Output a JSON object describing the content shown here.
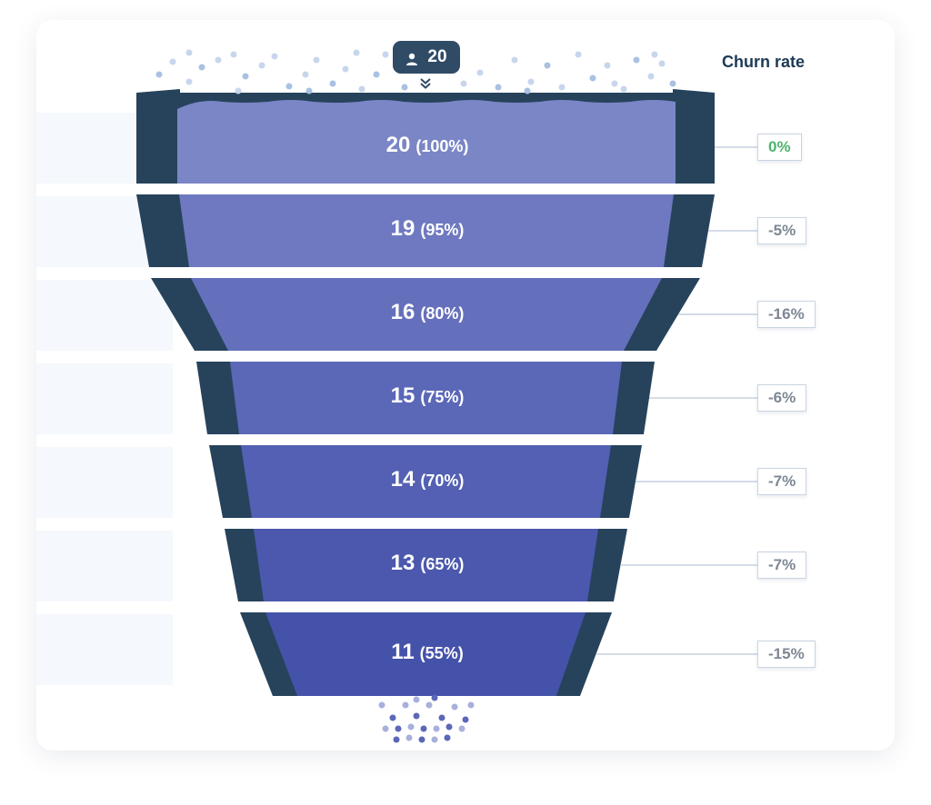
{
  "badge": {
    "icon": "user-icon",
    "value": "20"
  },
  "churn_header": "Churn rate",
  "colors": {
    "funnel_outer": "#27435c",
    "churn_zero": "#4cb46a",
    "stage_fills": [
      "#7a86c6",
      "#6e79c1",
      "#6570bc",
      "#5b67b7",
      "#5360b3",
      "#4b58ae",
      "#4552a9"
    ]
  },
  "chart_data": {
    "type": "funnel",
    "stages": [
      {
        "value": 20,
        "value_label": "20",
        "percent_label": "(100%)",
        "churn": "0%"
      },
      {
        "value": 19,
        "value_label": "19",
        "percent_label": "(95%)",
        "churn": "-5%"
      },
      {
        "value": 16,
        "value_label": "16",
        "percent_label": "(80%)",
        "churn": "-16%"
      },
      {
        "value": 15,
        "value_label": "15",
        "percent_label": "(75%)",
        "churn": "-6%"
      },
      {
        "value": 14,
        "value_label": "14",
        "percent_label": "(70%)",
        "churn": "-7%"
      },
      {
        "value": 13,
        "value_label": "13",
        "percent_label": "(65%)",
        "churn": "-7%"
      },
      {
        "value": 11,
        "value_label": "11",
        "percent_label": "(55%)",
        "churn": "-15%"
      }
    ]
  }
}
